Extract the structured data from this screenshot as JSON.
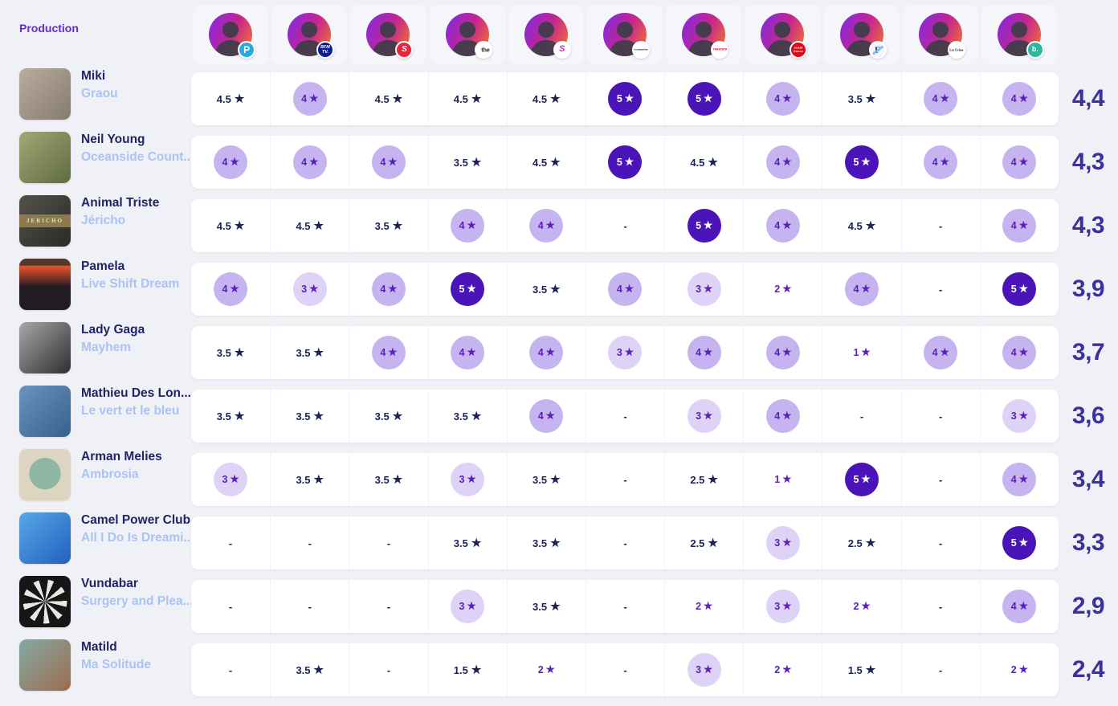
{
  "theme": {
    "page_bg": "#f0f1f6",
    "header_cell_bg": "#f5f6fa",
    "card_bg": "#ffffff",
    "separator": "#f1f2f8",
    "accent": "#6429dd",
    "artist_color": "#212464",
    "title_color": "#a9c4f3"
  },
  "rating_styles": {
    "circle_colors": {
      "5": "#4a14b8",
      "4": "#c6b4f1",
      "3": "#ded3f6"
    },
    "integer_text": "#5b21b6",
    "half_text": "#1b2356",
    "average_color": "#3d309c",
    "star_glyph": "★",
    "no_rating_glyph": "-"
  },
  "header": {
    "production_label": "Production"
  },
  "critics": [
    {
      "badge": {
        "name": "p-blue-badge-icon",
        "bg": "#27aae1",
        "fg": "#ffffff",
        "text": "P",
        "fs": 12
      }
    },
    {
      "badge": {
        "name": "bfmtv-badge-icon",
        "bg": "#0a1c8f",
        "fg": "#ffffff",
        "lines": [
          "BFM",
          "TV."
        ],
        "fs": 5.5,
        "italic": true
      }
    },
    {
      "badge": {
        "name": "red-s-badge-icon",
        "bg": "#e8263d",
        "fg": "#ffffff",
        "text": "S",
        "fs": 10,
        "italic": true
      }
    },
    {
      "badge": {
        "name": "triangle-the-badge-icon",
        "bg": "#ffffff",
        "fg": "#18181b",
        "text": "the",
        "prefix": "◀",
        "prefix_color": "#e11d2e",
        "fs": 7
      }
    },
    {
      "badge": {
        "name": "pink-squiggle-badge-icon",
        "bg": "#ffffff",
        "fg": "#cc2faf",
        "text": "S",
        "fs": 11,
        "italic": true
      }
    },
    {
      "badge": {
        "name": "inrockuptibles-badge-icon",
        "bg": "#ffffff",
        "fg": "#18181b",
        "text": "inrockuptibles",
        "fs": 3
      }
    },
    {
      "badge": {
        "name": "taratata-badge-icon",
        "bg": "#ffffff",
        "fg": "#e4002b",
        "text": "TARATATA",
        "fs": 3.5
      }
    },
    {
      "badge": {
        "name": "ouest-france-badge-icon",
        "bg": "#e30613",
        "fg": "#ffffff",
        "lines": [
          "ouest",
          "france"
        ],
        "fs": 4
      }
    },
    {
      "badge": {
        "name": "figaro-f-badge-icon",
        "bg": "#f3f7fc",
        "fg": "#17407c",
        "text": "F",
        "fs": 12,
        "serif": true,
        "swoosh": "#7fb7e8"
      }
    },
    {
      "badge": {
        "name": "lesechos-badge-icon",
        "bg": "#ffffff",
        "fg": "#111111",
        "text": "Les Echos",
        "fs": 4,
        "serif": true
      }
    },
    {
      "badge": {
        "name": "basique-b-badge-icon",
        "bg": "#2fb6a3",
        "fg": "#ffffff",
        "text": "b.",
        "fs": 9
      }
    }
  ],
  "albums": [
    {
      "artist": "Miki",
      "title": "Graou",
      "average": "4,4",
      "cover": {
        "c1": "#b9ad9f",
        "c2": "#857b6e"
      },
      "ratings": [
        4.5,
        4,
        4.5,
        4.5,
        4.5,
        5,
        5,
        4,
        3.5,
        4,
        4
      ]
    },
    {
      "artist": "Neil Young",
      "title": "Oceanside Count...",
      "average": "4,3",
      "cover": {
        "c1": "#a3a876",
        "c2": "#5f6b42"
      },
      "ratings": [
        4,
        4,
        4,
        3.5,
        4.5,
        5,
        4.5,
        4,
        5,
        4,
        4
      ]
    },
    {
      "artist": "Animal Triste",
      "title": "Jéricho",
      "average": "4,3",
      "cover": {
        "c1": "#55524b",
        "c2": "#2b2a27",
        "band": "#8c7a4f",
        "band_text": "JERICHO"
      },
      "ratings": [
        4.5,
        4.5,
        3.5,
        4,
        4,
        null,
        5,
        4,
        4.5,
        null,
        4
      ]
    },
    {
      "artist": "Pamela",
      "title": "Live Shift Dream",
      "average": "3,9",
      "cover": {
        "c1": "#54382b",
        "c2": "#221c22",
        "stripe": "#e0502a"
      },
      "ratings": [
        4,
        3,
        4,
        5,
        3.5,
        4,
        3,
        2,
        4,
        null,
        5
      ]
    },
    {
      "artist": "Lady Gaga",
      "title": "Mayhem",
      "average": "3,7",
      "cover": {
        "c1": "#a8a8a8",
        "c2": "#2e2e2e"
      },
      "ratings": [
        3.5,
        3.5,
        4,
        4,
        4,
        3,
        4,
        4,
        1,
        4,
        4
      ]
    },
    {
      "artist": "Mathieu Des Lon...",
      "title": "Le vert et le bleu",
      "average": "3,6",
      "cover": {
        "c1": "#6d93bd",
        "c2": "#35608f"
      },
      "ratings": [
        3.5,
        3.5,
        3.5,
        3.5,
        4,
        null,
        3,
        4,
        null,
        null,
        3
      ]
    },
    {
      "artist": "Arman Melies",
      "title": "Ambrosia",
      "average": "3,4",
      "cover": {
        "c1": "#8fb7a6",
        "c2": "#ddd5c0",
        "radial": true
      },
      "ratings": [
        3,
        3.5,
        3.5,
        3,
        3.5,
        null,
        2.5,
        1,
        5,
        null,
        4
      ]
    },
    {
      "artist": "Camel Power Club",
      "title": "All I Do Is Dreami...",
      "average": "3,3",
      "cover": {
        "c1": "#58a7e8",
        "c2": "#2160be"
      },
      "ratings": [
        null,
        null,
        null,
        3.5,
        3.5,
        null,
        2.5,
        3,
        2.5,
        null,
        5
      ]
    },
    {
      "artist": "Vundabar",
      "title": "Surgery and Plea...",
      "average": "2,9",
      "cover": {
        "c1": "#e9e7e1",
        "c2": "#161616",
        "spiral": true
      },
      "ratings": [
        null,
        null,
        null,
        3,
        3.5,
        null,
        2,
        3,
        2,
        null,
        4
      ]
    },
    {
      "artist": "Matild",
      "title": "Ma Solitude",
      "average": "2,4",
      "cover": {
        "c1": "#84aaa4",
        "c2": "#9c6b4e"
      },
      "ratings": [
        null,
        3.5,
        null,
        1.5,
        2,
        null,
        3,
        2,
        1.5,
        null,
        2
      ]
    }
  ]
}
